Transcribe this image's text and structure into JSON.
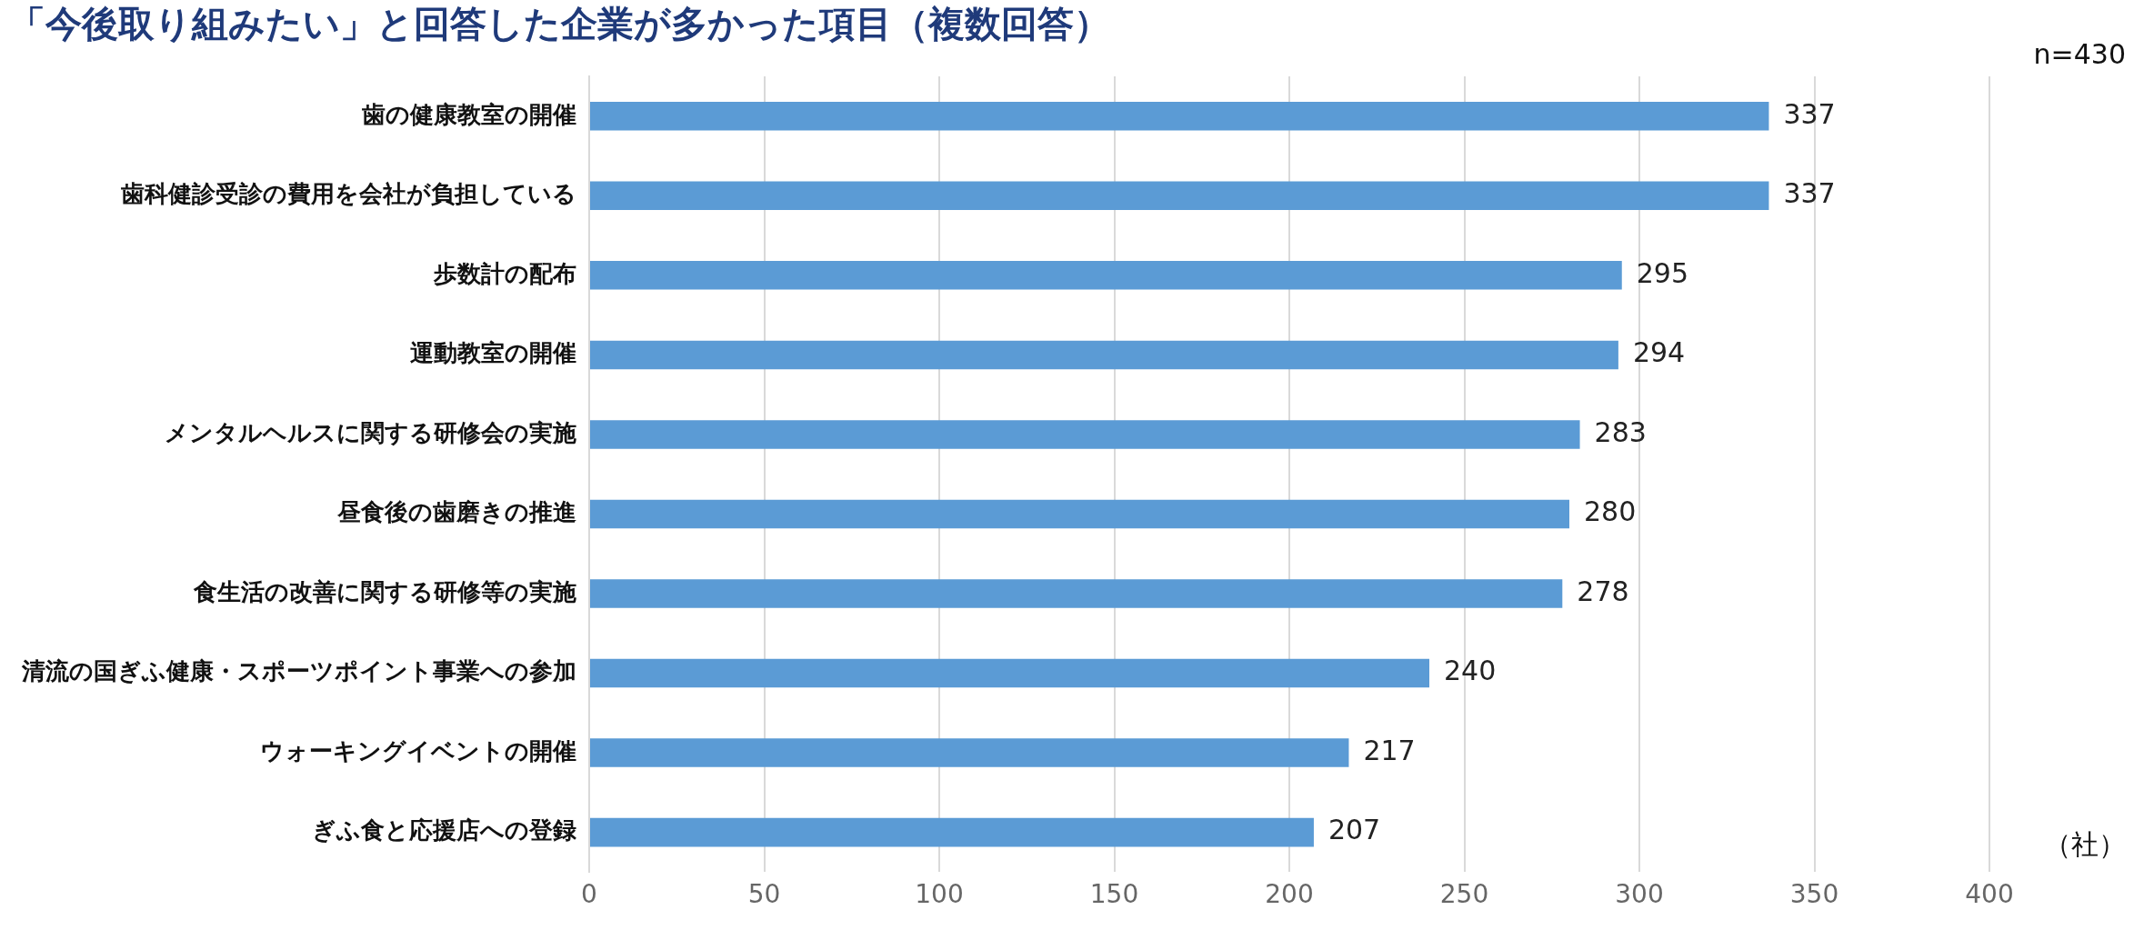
{
  "chart_data": {
    "type": "bar",
    "orientation": "horizontal",
    "title": "「今後取り組みたい」と回答した企業が多かった項目（複数回答）",
    "categories": [
      "歯の健康教室の開催",
      "歯科健診受診の費用を会社が負担している",
      "歩数計の配布",
      "運動教室の開催",
      "メンタルヘルスに関する研修会の実施",
      "昼食後の歯磨きの推進",
      "食生活の改善に関する研修等の実施",
      "清流の国ぎふ健康・スポーツポイント事業への参加",
      "ウォーキングイベントの開催",
      "ぎふ食と応援店への登録"
    ],
    "values": [
      337,
      337,
      295,
      294,
      283,
      280,
      278,
      240,
      217,
      207
    ],
    "color": "#5b9bd5",
    "xlim": [
      0,
      400
    ],
    "xticks": [
      0,
      50,
      100,
      150,
      200,
      250,
      300,
      350,
      400
    ],
    "grid": "x",
    "data_labels": true,
    "annotations": [
      "n=430",
      "（社）"
    ]
  }
}
